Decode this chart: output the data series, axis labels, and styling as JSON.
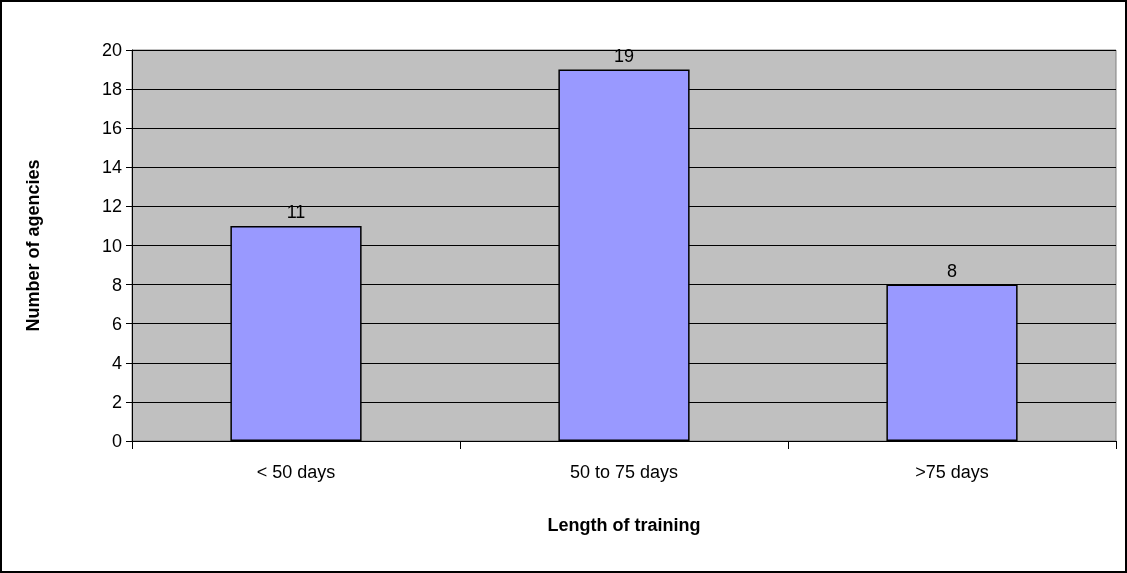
{
  "chart_data": {
    "type": "bar",
    "xlabel": "Length of training",
    "ylabel": "Number of agencies",
    "categories": [
      "< 50 days",
      "50 to 75 days",
      ">75 days"
    ],
    "values": [
      11,
      19,
      8
    ],
    "color": "#9999ff",
    "ylim": [
      0,
      20
    ],
    "yticks": [
      0,
      2,
      4,
      6,
      8,
      10,
      12,
      14,
      16,
      18,
      20
    ],
    "grid": "y",
    "data_labels": true
  }
}
